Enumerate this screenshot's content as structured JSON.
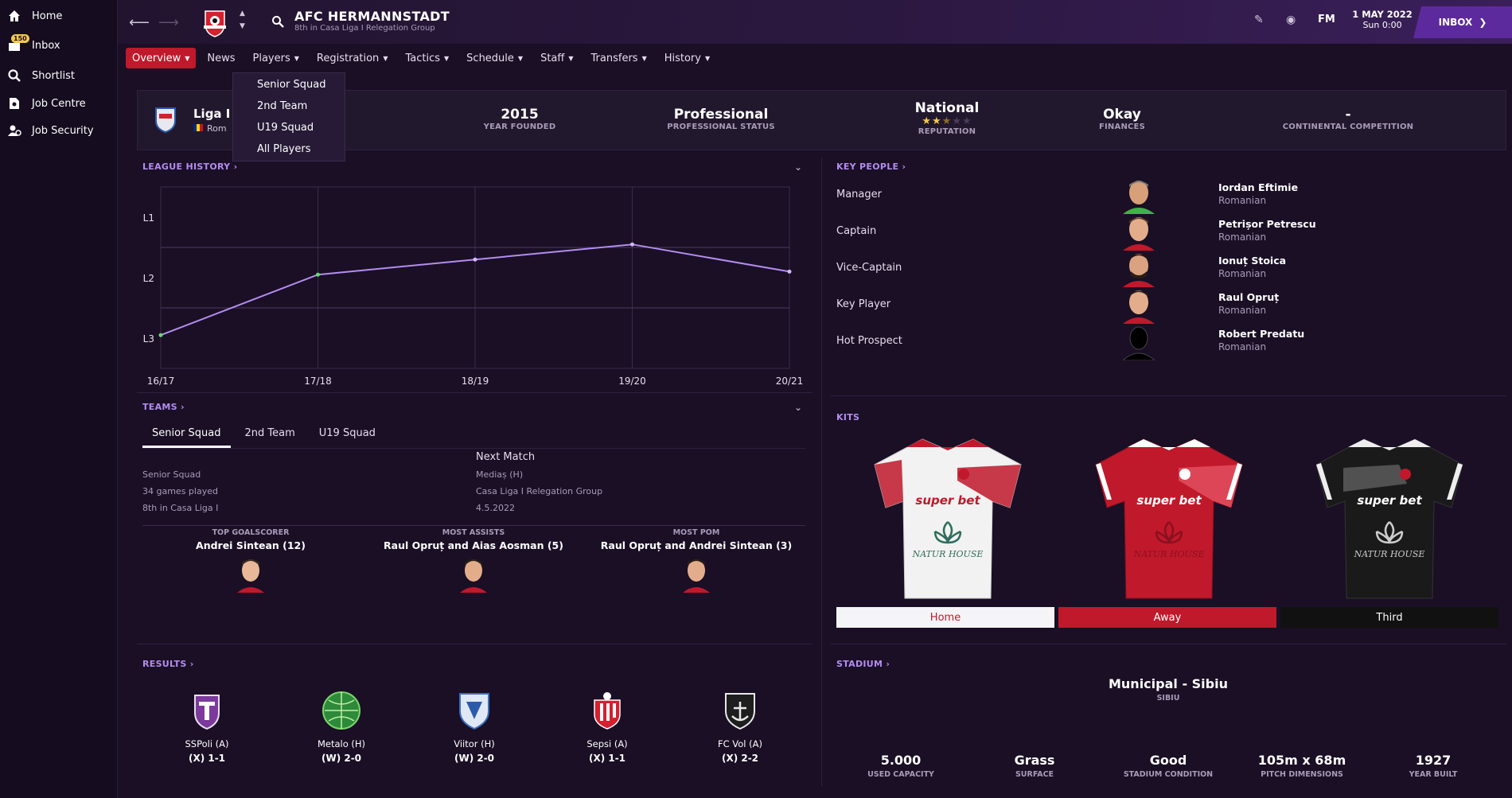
{
  "sidebar": {
    "items": [
      {
        "label": "Home",
        "icon": "home-icon"
      },
      {
        "label": "Inbox",
        "icon": "inbox-icon",
        "badge": "150"
      },
      {
        "label": "Shortlist",
        "icon": "search-icon"
      },
      {
        "label": "Job Centre",
        "icon": "job-centre-icon"
      },
      {
        "label": "Job Security",
        "icon": "job-security-icon"
      }
    ]
  },
  "header": {
    "club_name": "AFC HERMANNSTADT",
    "club_sub": "8th in Casa Liga I Relegation Group",
    "fm": "FM",
    "date": "1 MAY 2022",
    "time": "Sun 0:00",
    "inbox": "INBOX"
  },
  "subnav": [
    "Overview",
    "News",
    "Players",
    "Registration",
    "Tactics",
    "Schedule",
    "Staff",
    "Transfers",
    "History"
  ],
  "dropdown": [
    "Senior Squad",
    "2nd Team",
    "U19 Squad",
    "All Players"
  ],
  "infobar": {
    "league": "Liga I",
    "country": "Rom",
    "stats": [
      {
        "value": "2015",
        "label": "YEAR FOUNDED"
      },
      {
        "value": "Professional",
        "label": "PROFESSIONAL STATUS"
      },
      {
        "value": "National",
        "label": "REPUTATION"
      },
      {
        "value": "Okay",
        "label": "FINANCES"
      },
      {
        "value": "-",
        "label": "CONTINENTAL COMPETITION"
      }
    ],
    "reputation_stars": 2.5
  },
  "league_history": {
    "title": "LEAGUE HISTORY"
  },
  "chart_data": {
    "type": "line",
    "x": [
      "16/17",
      "17/18",
      "18/19",
      "19/20",
      "20/21"
    ],
    "y_labels": [
      "L1",
      "L2",
      "L3"
    ],
    "series": [
      {
        "values": [
          2.95,
          1.95,
          1.7,
          1.45,
          1.9
        ]
      }
    ],
    "ylim": [
      1,
      3.5
    ],
    "grid": true
  },
  "teams": {
    "title": "TEAMS",
    "tabs": [
      "Senior Squad",
      "2nd Team",
      "U19 Squad"
    ],
    "left": [
      "Senior Squad",
      "34 games played",
      "8th in Casa Liga I"
    ],
    "next_title": "Next Match",
    "next": [
      "Mediaș (H)",
      "Casa Liga I Relegation Group",
      "4.5.2022"
    ]
  },
  "performers": [
    {
      "label": "TOP GOALSCORER",
      "value": "Andrei Sintean (12)"
    },
    {
      "label": "MOST ASSISTS",
      "value": "Raul Opruț and Aias Aosman (5)"
    },
    {
      "label": "MOST POM",
      "value": "Raul Opruț and Andrei Sintean (3)"
    }
  ],
  "results": {
    "title": "RESULTS",
    "items": [
      {
        "team": "SSPoli (A)",
        "score": "(X) 1-1"
      },
      {
        "team": "Metalo (H)",
        "score": "(W) 2-0"
      },
      {
        "team": "Viitor (H)",
        "score": "(W) 2-0"
      },
      {
        "team": "Sepsi (A)",
        "score": "(X) 1-1"
      },
      {
        "team": "FC Vol (A)",
        "score": "(X) 2-2"
      }
    ]
  },
  "key_people": {
    "title": "KEY PEOPLE",
    "items": [
      {
        "role": "Manager",
        "name": "Iordan Eftimie",
        "nat": "Romanian"
      },
      {
        "role": "Captain",
        "name": "Petrișor Petrescu",
        "nat": "Romanian"
      },
      {
        "role": "Vice-Captain",
        "name": "Ionuț Stoica",
        "nat": "Romanian"
      },
      {
        "role": "Key Player",
        "name": "Raul Opruț",
        "nat": "Romanian"
      },
      {
        "role": "Hot Prospect",
        "name": "Robert Predatu",
        "nat": "Romanian"
      }
    ]
  },
  "kits": {
    "title": "KITS",
    "buttons": [
      "Home",
      "Away",
      "Third"
    ],
    "sponsor": "super bet",
    "sponsor2": "NATUR HOUSE"
  },
  "stadium": {
    "title": "STADIUM",
    "name": "Municipal - Sibiu",
    "city": "SIBIU",
    "stats": [
      {
        "value": "5.000",
        "label": "USED CAPACITY"
      },
      {
        "value": "Grass",
        "label": "SURFACE"
      },
      {
        "value": "Good",
        "label": "STADIUM CONDITION"
      },
      {
        "value": "105m x 68m",
        "label": "PITCH DIMENSIONS"
      },
      {
        "value": "1927",
        "label": "YEAR BUILT"
      }
    ]
  },
  "colors": {
    "accent": "#b48cf0",
    "red": "#c0192b",
    "line": "#b48cf0"
  }
}
